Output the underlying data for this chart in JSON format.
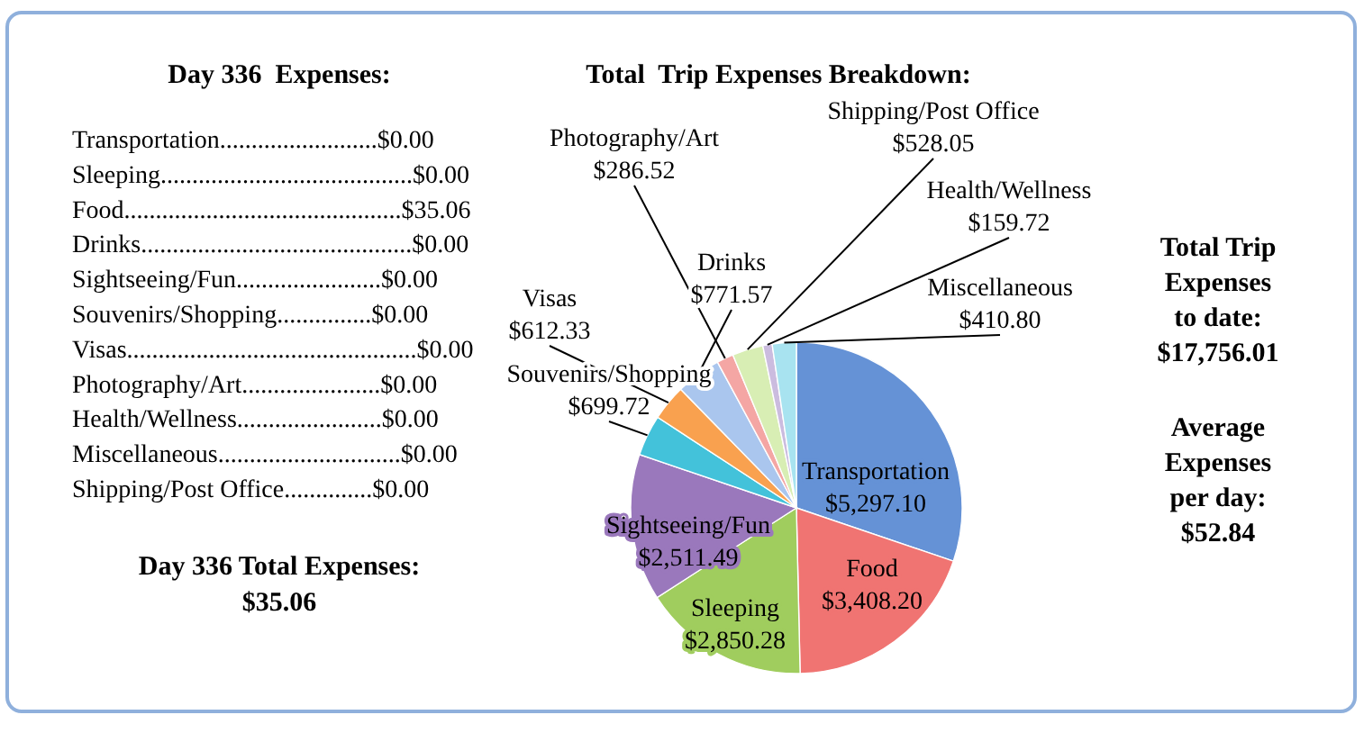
{
  "chart_data": [
    {
      "type": "other",
      "title": "Day 336  Expenses:",
      "annotations": [
        "Transportation.........................$0.00",
        "Sleeping........................................$0.00",
        "Food............................................$35.06",
        "Drinks...........................................$0.00",
        "Sightseeing/Fun.......................$0.00",
        "Souvenirs/Shopping...............$0.00",
        "Visas..............................................$0.00",
        "Photography/Art......................$0.00",
        "Health/Wellness.......................$0.00",
        "Miscellaneous.............................$0.00",
        "Shipping/Post Office..............$0.00",
        "Day 336 Total Expenses:",
        "$35.06"
      ]
    },
    {
      "type": "pie",
      "title": "Total  Trip Expenses Breakdown:",
      "categories": [
        "Transportation",
        "Food",
        "Sleeping",
        "Sightseeing/Fun",
        "Souvenirs/Shopping",
        "Visas",
        "Drinks",
        "Photography/Art",
        "Shipping/Post Office",
        "Health/Wellness",
        "Miscellaneous"
      ],
      "values": [
        5297.1,
        3408.2,
        2850.28,
        2511.49,
        699.72,
        612.33,
        771.57,
        286.52,
        528.05,
        159.72,
        410.8
      ],
      "value_labels": [
        "$5,297.10",
        "$3,408.20",
        "$2,850.28",
        "$2,511.49",
        "$699.72",
        "$612.33",
        "$771.57",
        "$286.52",
        "$528.05",
        "$159.72",
        "$410.80"
      ],
      "colors": [
        "#6592d6",
        "#f07472",
        "#a0cd5e",
        "#9a78bc",
        "#43c2da",
        "#f9a14f",
        "#aac6ee",
        "#f4a6a4",
        "#d8eeb4",
        "#cbbcdf",
        "#a8e3f0"
      ]
    },
    {
      "type": "other",
      "annotations": [
        "Total Trip",
        "Expenses",
        "to date:",
        "$17,756.01",
        "Average",
        "Expenses",
        "per day:",
        "$52.84"
      ]
    }
  ]
}
